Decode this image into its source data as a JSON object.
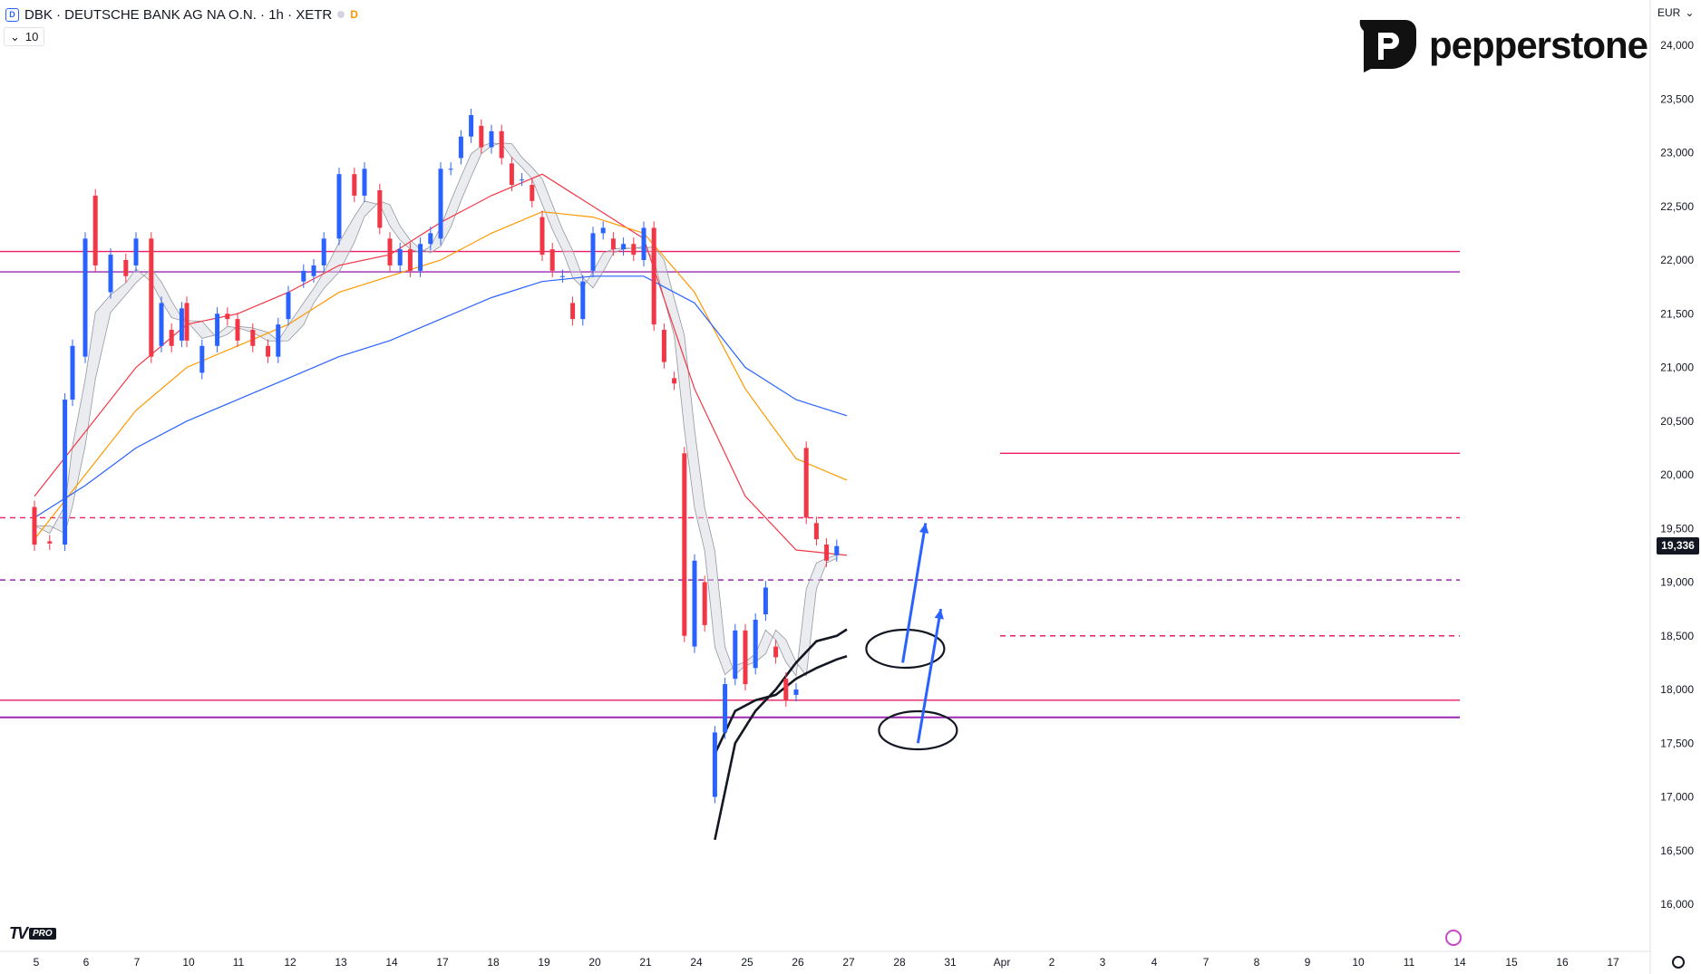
{
  "header": {
    "symbol": "DBK",
    "title": "DBK · DEUTSCHE BANK AG NA O.N. · 1h · XETR",
    "badge": "D",
    "volume_label": "10"
  },
  "brand": {
    "name": "pepperstone"
  },
  "axis": {
    "currency": "EUR",
    "last_price_label": "19,336"
  },
  "icons": [
    "chart-logo-icon",
    "pepperstone-logo-icon",
    "tradingview-logo-icon",
    "alert-icon",
    "settings-icon",
    "chevron-down-icon",
    "chevron-up-icon"
  ],
  "colors": {
    "up": "#2962ff",
    "down": "#f23645",
    "ma_fast": "#f23645",
    "ma_mid": "#ff9800",
    "ma_slow": "#2962ff",
    "ribbon_up": "#d1d4dc",
    "ribbon_down": "#b85c5c",
    "level_pink": "#e91e63",
    "level_purple": "#9c27b0",
    "envelope": "#131722",
    "arrows": "#2962ff"
  },
  "chart_data": {
    "type": "candlestick",
    "symbol": "DBK",
    "interval": "1h",
    "x_tick_labels": [
      "5",
      "6",
      "7",
      "10",
      "11",
      "12",
      "13",
      "14",
      "17",
      "18",
      "19",
      "20",
      "21",
      "24",
      "25",
      "26",
      "27",
      "28",
      "31",
      "Apr",
      "2",
      "3",
      "4",
      "7",
      "8",
      "9",
      "10",
      "11",
      "14",
      "15",
      "16",
      "17"
    ],
    "y_tick_labels": [
      "24,000",
      "23,500",
      "23,000",
      "22,500",
      "22,000",
      "21,500",
      "21,000",
      "20,500",
      "20,000",
      "19,500",
      "19,000",
      "18,500",
      "18,000",
      "17,500",
      "17,000",
      "16,500",
      "16,000"
    ],
    "ylim": [
      15800,
      24200
    ],
    "last_price": 19336,
    "candles": [
      [
        0,
        19700,
        19350
      ],
      [
        0.3,
        19380,
        19360
      ],
      [
        0.6,
        19350,
        20700
      ],
      [
        0.75,
        20700,
        21200
      ],
      [
        1.0,
        21100,
        22200
      ],
      [
        1.2,
        22600,
        21950
      ],
      [
        1.5,
        21700,
        22050
      ],
      [
        1.8,
        22000,
        21850
      ],
      [
        2.0,
        21950,
        22200
      ],
      [
        2.3,
        22200,
        21100
      ],
      [
        2.5,
        21200,
        21600
      ],
      [
        2.7,
        21350,
        21200
      ],
      [
        2.9,
        21250,
        21550
      ],
      [
        3.0,
        21600,
        21250
      ],
      [
        3.3,
        20950,
        21200
      ],
      [
        3.6,
        21200,
        21500
      ],
      [
        3.8,
        21500,
        21450
      ],
      [
        4.0,
        21450,
        21250
      ],
      [
        4.3,
        21350,
        21200
      ],
      [
        4.6,
        21200,
        21100
      ],
      [
        4.8,
        21100,
        21400
      ],
      [
        5.0,
        21450,
        21700
      ],
      [
        5.3,
        21800,
        21900
      ],
      [
        5.5,
        21850,
        21950
      ],
      [
        5.7,
        21950,
        22200
      ],
      [
        6.0,
        22200,
        22800
      ],
      [
        6.3,
        22800,
        22600
      ],
      [
        6.5,
        22600,
        22850
      ],
      [
        6.8,
        22650,
        22300
      ],
      [
        7.0,
        22200,
        21950
      ],
      [
        7.2,
        21950,
        22100
      ],
      [
        7.4,
        22100,
        21900
      ],
      [
        7.6,
        21900,
        22150
      ],
      [
        7.8,
        22150,
        22250
      ],
      [
        8.0,
        22200,
        22850
      ],
      [
        8.2,
        22850,
        22850
      ],
      [
        8.4,
        22950,
        23150
      ],
      [
        8.6,
        23150,
        23350
      ],
      [
        8.8,
        23250,
        23050
      ],
      [
        9.0,
        23050,
        23200
      ],
      [
        9.2,
        23200,
        22950
      ],
      [
        9.4,
        22900,
        22700
      ],
      [
        9.6,
        22750,
        22750
      ],
      [
        9.8,
        22700,
        22550
      ],
      [
        10.0,
        22400,
        22050
      ],
      [
        10.2,
        22100,
        21900
      ],
      [
        10.4,
        21850,
        21850
      ],
      [
        10.6,
        21600,
        21450
      ],
      [
        10.8,
        21450,
        21800
      ],
      [
        11.0,
        21900,
        22250
      ],
      [
        11.2,
        22250,
        22300
      ],
      [
        11.4,
        22200,
        22100
      ],
      [
        11.6,
        22100,
        22150
      ],
      [
        11.8,
        22150,
        22050
      ],
      [
        12.0,
        22000,
        22300
      ],
      [
        12.2,
        22300,
        21400
      ],
      [
        12.4,
        21350,
        21050
      ],
      [
        12.6,
        20900,
        20850
      ],
      [
        12.8,
        20200,
        18500
      ],
      [
        13.0,
        18400,
        19200
      ],
      [
        13.2,
        19000,
        18600
      ],
      [
        13.4,
        17000,
        17600
      ],
      [
        13.6,
        17600,
        18050
      ],
      [
        13.8,
        18100,
        18550
      ],
      [
        14.0,
        18550,
        18050
      ],
      [
        14.2,
        18200,
        18650
      ],
      [
        14.4,
        18700,
        18950
      ],
      [
        14.6,
        18400,
        18300
      ],
      [
        14.8,
        18100,
        17900
      ],
      [
        15.0,
        17950,
        18000
      ],
      [
        15.2,
        20250,
        19600
      ],
      [
        15.4,
        19550,
        19400
      ],
      [
        15.6,
        19350,
        19200
      ],
      [
        15.8,
        19250,
        19336
      ]
    ],
    "horizontal_levels": [
      {
        "price": 22080,
        "style": "solid",
        "color": "#e91e63"
      },
      {
        "price": 21890,
        "style": "solid",
        "color": "#9c27b0"
      },
      {
        "price": 20200,
        "style": "solid",
        "color": "#e91e63"
      },
      {
        "price": 19600,
        "style": "dashed",
        "color": "#e91e63"
      },
      {
        "price": 19020,
        "style": "dashed",
        "color": "#9c27b0"
      },
      {
        "price": 18500,
        "style": "dashed",
        "color": "#e91e63"
      },
      {
        "price": 17900,
        "style": "solid",
        "color": "#e91e63"
      },
      {
        "price": 17740,
        "style": "solid",
        "color": "#9c27b0"
      }
    ],
    "moving_averages": [
      {
        "color": "#f23645",
        "points": [
          [
            0,
            19800
          ],
          [
            1,
            20400
          ],
          [
            2,
            21000
          ],
          [
            3,
            21400
          ],
          [
            4,
            21500
          ],
          [
            5,
            21700
          ],
          [
            6,
            21950
          ],
          [
            7,
            22050
          ],
          [
            8,
            22350
          ],
          [
            9,
            22600
          ],
          [
            10,
            22800
          ],
          [
            11,
            22500
          ],
          [
            12,
            22200
          ],
          [
            13,
            20800
          ],
          [
            14,
            19800
          ],
          [
            15,
            19300
          ],
          [
            16,
            19250
          ]
        ]
      },
      {
        "color": "#ff9800",
        "points": [
          [
            0,
            19400
          ],
          [
            1,
            20000
          ],
          [
            2,
            20600
          ],
          [
            3,
            21000
          ],
          [
            4,
            21200
          ],
          [
            5,
            21400
          ],
          [
            6,
            21700
          ],
          [
            7,
            21850
          ],
          [
            8,
            22000
          ],
          [
            9,
            22250
          ],
          [
            10,
            22450
          ],
          [
            11,
            22400
          ],
          [
            12,
            22250
          ],
          [
            13,
            21700
          ],
          [
            14,
            20800
          ],
          [
            15,
            20150
          ],
          [
            16,
            19950
          ]
        ]
      },
      {
        "color": "#2962ff",
        "points": [
          [
            0,
            19600
          ],
          [
            1,
            19900
          ],
          [
            2,
            20250
          ],
          [
            3,
            20500
          ],
          [
            4,
            20700
          ],
          [
            5,
            20900
          ],
          [
            6,
            21100
          ],
          [
            7,
            21250
          ],
          [
            8,
            21450
          ],
          [
            9,
            21650
          ],
          [
            10,
            21800
          ],
          [
            11,
            21850
          ],
          [
            12,
            21850
          ],
          [
            13,
            21600
          ],
          [
            14,
            21000
          ],
          [
            15,
            20700
          ],
          [
            16,
            20550
          ]
        ]
      }
    ],
    "envelope_lines": [
      {
        "points": [
          [
            13.4,
            16600
          ],
          [
            13.8,
            17500
          ],
          [
            14.2,
            17800
          ],
          [
            14.6,
            18000
          ],
          [
            15.0,
            18250
          ],
          [
            15.4,
            18450
          ],
          [
            15.8,
            18500
          ],
          [
            16.0,
            18560
          ]
        ]
      },
      {
        "points": [
          [
            13.4,
            17400
          ],
          [
            13.8,
            17800
          ],
          [
            14.2,
            17900
          ],
          [
            14.6,
            17950
          ],
          [
            15.0,
            18100
          ],
          [
            15.4,
            18200
          ],
          [
            15.8,
            18280
          ],
          [
            16.0,
            18310
          ]
        ]
      }
    ],
    "annotations": [
      {
        "type": "ellipse",
        "price": 18380,
        "index": 17.15
      },
      {
        "type": "arrow",
        "from": [
          17.1,
          18250
        ],
        "to": [
          17.55,
          19550
        ]
      },
      {
        "type": "ellipse",
        "price": 17620,
        "index": 17.4
      },
      {
        "type": "arrow",
        "from": [
          17.4,
          17500
        ],
        "to": [
          17.85,
          18750
        ]
      }
    ]
  }
}
